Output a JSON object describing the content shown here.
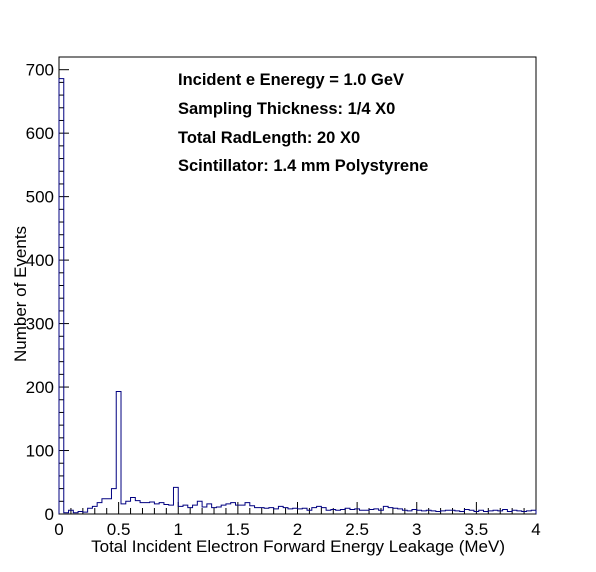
{
  "chart_data": {
    "type": "histogram",
    "xlabel": "Total Incident Electron Forward Energy Leakage (MeV)",
    "ylabel": "Number of Events",
    "xlim": [
      0,
      4
    ],
    "ylim": [
      0,
      720
    ],
    "x_ticks": [
      "0",
      "0.5",
      "1",
      "1.5",
      "2",
      "2.5",
      "3",
      "3.5",
      "4"
    ],
    "y_ticks": [
      "0",
      "100",
      "200",
      "300",
      "400",
      "500",
      "600",
      "700"
    ],
    "annotations": [
      "Incident e Eneregy = 1.0 GeV",
      "Sampling Thickness: 1/4 X0",
      "Total RadLength: 20 X0",
      "Scintillator: 1.4 mm Polystyrene"
    ],
    "bin_width": 0.04,
    "bin_start": 0,
    "values": [
      686,
      2,
      6,
      2,
      4,
      3,
      9,
      12,
      18,
      24,
      24,
      40,
      193,
      16,
      20,
      26,
      21,
      18,
      18,
      19,
      16,
      18,
      15,
      14,
      42,
      12,
      14,
      10,
      14,
      20,
      11,
      16,
      10,
      11,
      14,
      16,
      18,
      14,
      14,
      18,
      13,
      10,
      10,
      9,
      10,
      8,
      12,
      10,
      8,
      9,
      8,
      9,
      6,
      10,
      12,
      10,
      6,
      7,
      6,
      7,
      9,
      7,
      8,
      6,
      6,
      7,
      8,
      6,
      12,
      10,
      9,
      8,
      6,
      5,
      7,
      6,
      5,
      6,
      5,
      4,
      5,
      6,
      6,
      5,
      4,
      7,
      6,
      4,
      6,
      4,
      5,
      6,
      5,
      7,
      4,
      6,
      5,
      4,
      5,
      6
    ],
    "line_color": "#000080"
  }
}
